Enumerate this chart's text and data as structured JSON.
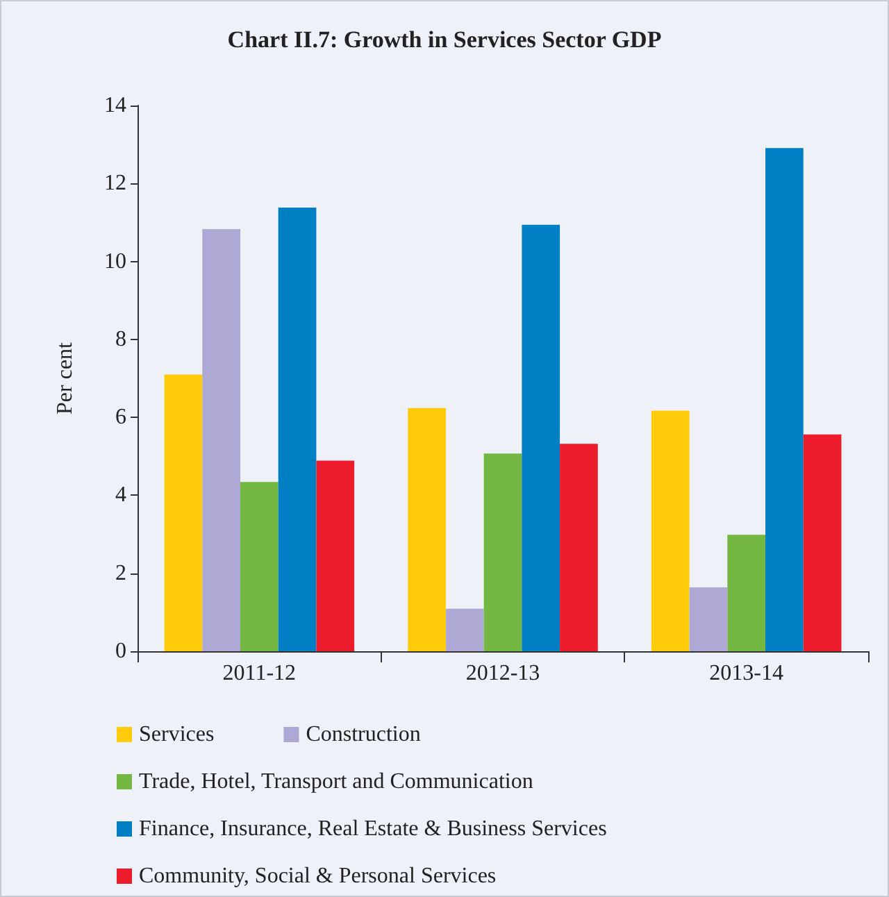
{
  "chart_data": {
    "type": "bar",
    "title": "Chart II.7: Growth in Services Sector GDP",
    "ylabel": "Per cent",
    "categories": [
      "2011-12",
      "2012-13",
      "2013-14"
    ],
    "series": [
      {
        "name": "Services",
        "color": "#ffcb0b",
        "values": [
          7.1,
          6.24,
          6.17
        ]
      },
      {
        "name": "Construction",
        "color": "#aea8d4",
        "values": [
          10.83,
          1.09,
          1.64
        ]
      },
      {
        "name": "Trade, Hotel, Transport and Communication",
        "color": "#74b743",
        "values": [
          4.34,
          5.07,
          2.99
        ]
      },
      {
        "name": "Finance, Insurance, Real Estate & Business Services",
        "color": "#007fc5",
        "values": [
          11.38,
          10.94,
          12.91
        ]
      },
      {
        "name": "Community, Social & Personal Services",
        "color": "#ec1c2c",
        "values": [
          4.89,
          5.32,
          5.56
        ]
      }
    ],
    "ylim": [
      0,
      14
    ],
    "yticks": [
      0,
      2,
      4,
      6,
      8,
      10,
      12,
      14
    ],
    "grid": false,
    "legend": "bottom"
  }
}
